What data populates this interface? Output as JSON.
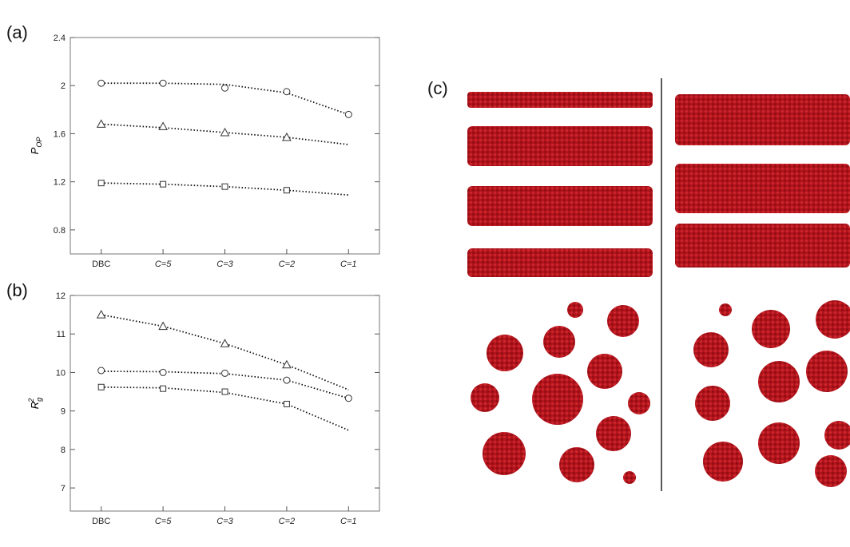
{
  "chart_data": [
    {
      "type": "line",
      "label": "(a)",
      "ylabel": {
        "main": "P",
        "sub": "OP"
      },
      "categories": [
        "DBC",
        "C=5",
        "C=3",
        "C=2",
        "C=1"
      ],
      "ylim": [
        0.6,
        2.4
      ],
      "yticks": [
        0.8,
        1.2,
        1.6,
        2.0,
        2.4
      ],
      "series": [
        {
          "marker": "circle",
          "color": "#333333",
          "values": [
            2.02,
            2.02,
            1.98,
            1.95,
            1.76
          ],
          "fit": [
            2.02,
            2.02,
            2.01,
            1.94,
            1.76
          ]
        },
        {
          "marker": "triangle",
          "color": "#333333",
          "values": [
            1.68,
            1.66,
            1.61,
            1.57,
            null
          ],
          "fit": [
            1.68,
            1.65,
            1.61,
            1.57,
            1.51
          ]
        },
        {
          "marker": "square",
          "color": "#333333",
          "values": [
            1.19,
            1.18,
            1.16,
            1.13,
            null
          ],
          "fit": [
            1.19,
            1.18,
            1.16,
            1.13,
            1.09
          ]
        }
      ]
    },
    {
      "type": "line",
      "label": "(b)",
      "ylabel": {
        "main": "R",
        "sub": "g",
        "sup": "2"
      },
      "categories": [
        "DBC",
        "C=5",
        "C=3",
        "C=2",
        "C=1"
      ],
      "ylim": [
        6.4,
        12
      ],
      "yticks": [
        7,
        8,
        9,
        10,
        11,
        12
      ],
      "series": [
        {
          "marker": "triangle",
          "color": "#333333",
          "values": [
            11.5,
            11.2,
            10.75,
            10.2,
            null
          ],
          "fit": [
            11.5,
            11.2,
            10.75,
            10.2,
            9.55
          ]
        },
        {
          "marker": "circle",
          "color": "#333333",
          "values": [
            10.05,
            10.0,
            9.98,
            9.8,
            9.33
          ],
          "fit": [
            10.03,
            10.02,
            9.97,
            9.8,
            9.33
          ]
        },
        {
          "marker": "square",
          "color": "#333333",
          "values": [
            9.62,
            9.58,
            9.5,
            9.18,
            null
          ],
          "fit": [
            9.62,
            9.6,
            9.48,
            9.18,
            8.5
          ]
        }
      ]
    }
  ],
  "panel_c": {
    "label": "(c)"
  }
}
